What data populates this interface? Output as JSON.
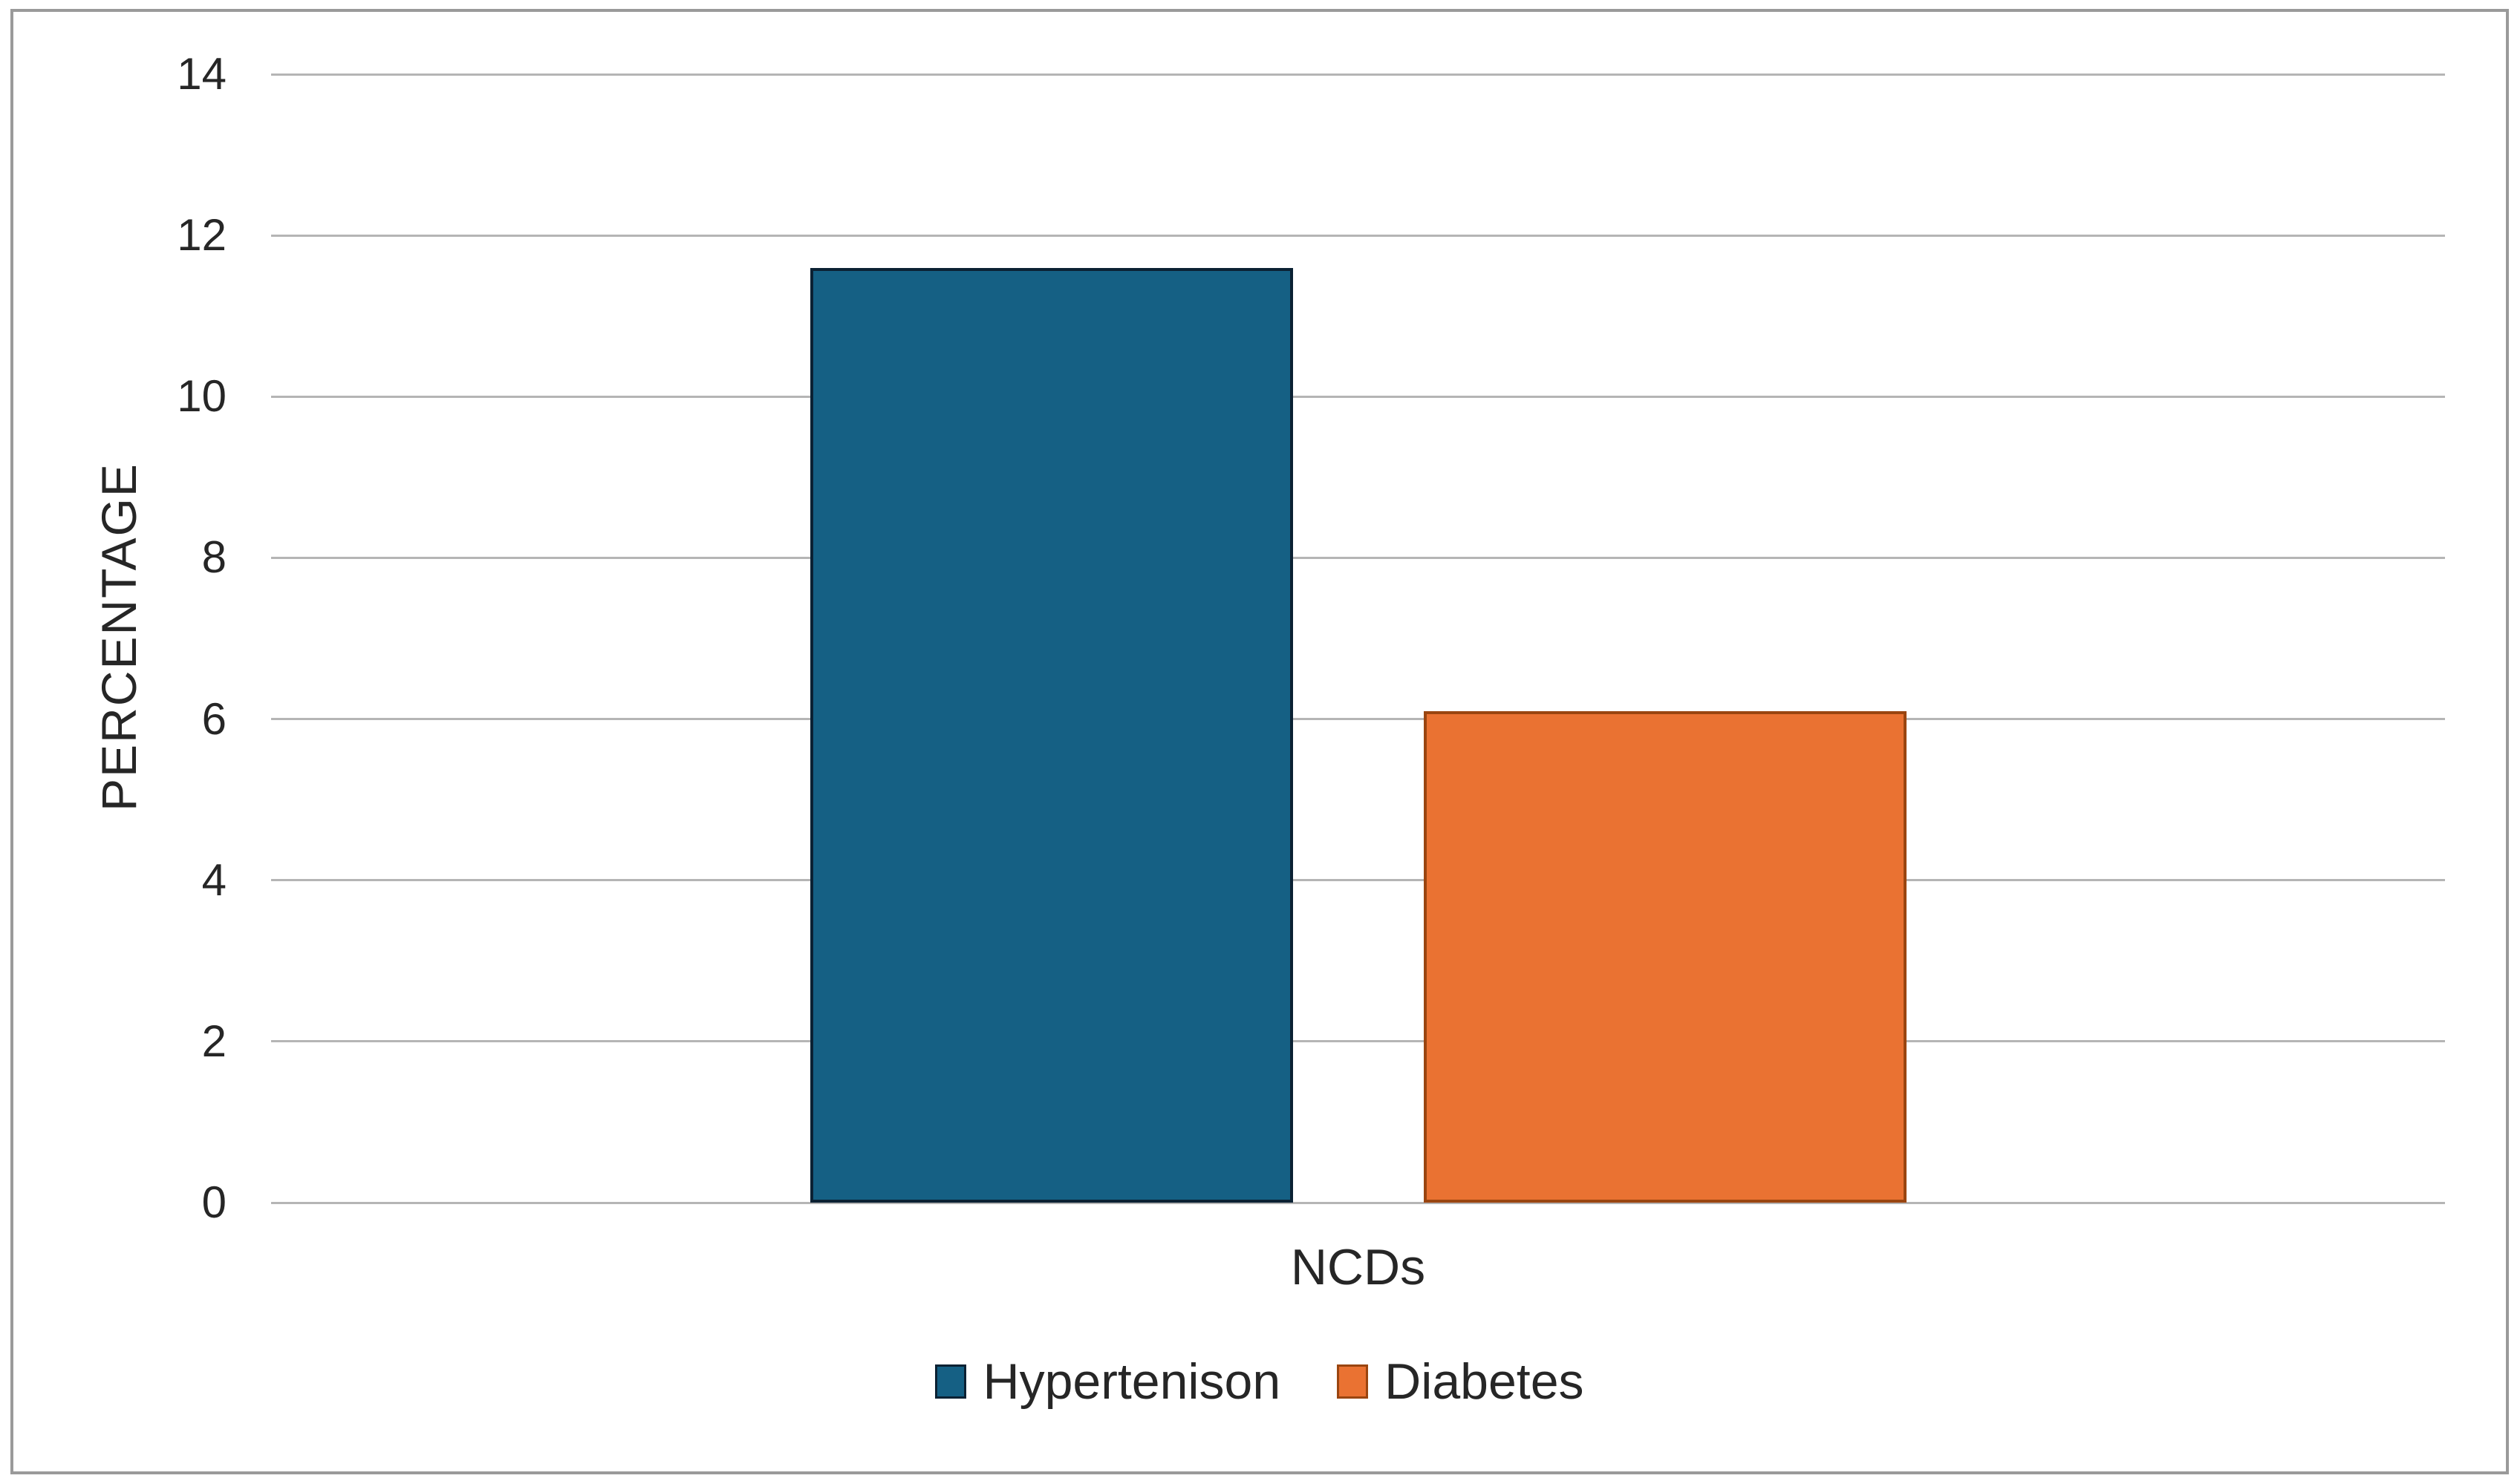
{
  "figure": {
    "background_color": "#ffffff",
    "frame_border_color": "#9a9a9a",
    "text_color": "#262626"
  },
  "chart_data": {
    "type": "bar",
    "title": "",
    "xlabel": "",
    "ylabel": "PERCENTAGE",
    "categories": [
      "NCDs"
    ],
    "series": [
      {
        "name": "Hypertenison",
        "values": [
          11.6
        ],
        "color": "#156084",
        "border_color": "#0b2133"
      },
      {
        "name": "Diabetes",
        "values": [
          6.1
        ],
        "color": "#ea7232",
        "border_color": "#9a4510"
      }
    ],
    "ylim": [
      0,
      14
    ],
    "yticks": [
      0,
      2,
      4,
      6,
      8,
      10,
      12,
      14
    ],
    "grid": true,
    "gridline_color": "#b5b5b5",
    "legend_position": "bottom"
  }
}
